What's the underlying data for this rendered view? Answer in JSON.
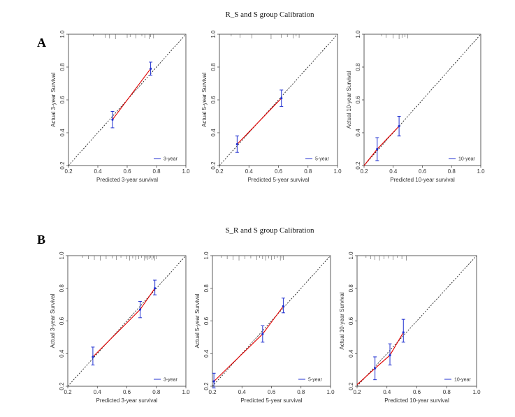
{
  "panels": [
    {
      "label": "A",
      "title": "R_S and S group Calibration"
    },
    {
      "label": "B",
      "title": "S_R and S group Calibration"
    }
  ],
  "colors": {
    "calibration": "#e00000",
    "error_bar": "#2030d0",
    "reference": "#222222",
    "axis": "#333333"
  },
  "chart_data": [
    {
      "type": "line",
      "panel": "A",
      "title": "R_S and S group Calibration",
      "xlabel": "Predicted 3-year  survival",
      "ylabel": "Actual 3-year Survival",
      "legend": "3-year",
      "xlim": [
        0.2,
        1.0
      ],
      "ylim": [
        0.2,
        1.0
      ],
      "xticks": [
        "0.2",
        "0.4",
        "0.6",
        "0.8",
        "1.0"
      ],
      "yticks": [
        "0.2",
        "0.4",
        "0.6",
        "0.8",
        "1.0"
      ],
      "points": [
        {
          "x": 0.5,
          "y": 0.48,
          "lo": 0.43,
          "hi": 0.53
        },
        {
          "x": 0.76,
          "y": 0.79,
          "lo": 0.75,
          "hi": 0.83
        }
      ]
    },
    {
      "type": "line",
      "panel": "A",
      "title": "",
      "xlabel": "Predicted 5-year  survival",
      "ylabel": "Actual 5-year Survival",
      "legend": "5-year",
      "xlim": [
        0.2,
        1.0
      ],
      "ylim": [
        0.2,
        1.0
      ],
      "xticks": [
        "0.2",
        "0.4",
        "0.6",
        "0.8",
        "1.0"
      ],
      "yticks": [
        "0.2",
        "0.4",
        "0.6",
        "0.8",
        "1.0"
      ],
      "points": [
        {
          "x": 0.32,
          "y": 0.33,
          "lo": 0.28,
          "hi": 0.38
        },
        {
          "x": 0.62,
          "y": 0.61,
          "lo": 0.56,
          "hi": 0.66
        }
      ]
    },
    {
      "type": "line",
      "panel": "A",
      "title": "",
      "xlabel": "Predicted 10-year  survival",
      "ylabel": "Actual 10-year Survival",
      "legend": "10-year",
      "xlim": [
        0.2,
        1.0
      ],
      "ylim": [
        0.2,
        1.0
      ],
      "xticks": [
        "0.2",
        "0.4",
        "0.6",
        "0.8",
        "1.0"
      ],
      "yticks": [
        "0.2",
        "0.4",
        "0.6",
        "0.8",
        "1.0"
      ],
      "points": [
        {
          "x": 0.2,
          "y": 0.2
        },
        {
          "x": 0.29,
          "y": 0.3,
          "lo": 0.23,
          "hi": 0.37
        },
        {
          "x": 0.44,
          "y": 0.44,
          "lo": 0.38,
          "hi": 0.5
        }
      ]
    },
    {
      "type": "line",
      "panel": "B",
      "title": "S_R and S group Calibration",
      "xlabel": "Predicted 3-year  survival",
      "ylabel": "Actual 3-year Survival",
      "legend": "3-year",
      "xlim": [
        0.2,
        1.0
      ],
      "ylim": [
        0.2,
        1.0
      ],
      "xticks": [
        "0.2",
        "0.4",
        "0.6",
        "0.8",
        "1.0"
      ],
      "yticks": [
        "0.2",
        "0.4",
        "0.6",
        "0.8",
        "1.0"
      ],
      "points": [
        {
          "x": 0.37,
          "y": 0.38,
          "lo": 0.33,
          "hi": 0.44
        },
        {
          "x": 0.69,
          "y": 0.67,
          "lo": 0.62,
          "hi": 0.72
        },
        {
          "x": 0.79,
          "y": 0.8,
          "lo": 0.76,
          "hi": 0.85
        }
      ]
    },
    {
      "type": "line",
      "panel": "B",
      "title": "",
      "xlabel": "Predicted 5-year  survival",
      "ylabel": "Actual 5-year Survival",
      "legend": "5-year",
      "xlim": [
        0.2,
        1.0
      ],
      "ylim": [
        0.2,
        1.0
      ],
      "xticks": [
        "0.2",
        "0.4",
        "0.6",
        "0.8",
        "1.0"
      ],
      "yticks": [
        "0.2",
        "0.4",
        "0.6",
        "0.8",
        "1.0"
      ],
      "points": [
        {
          "x": 0.21,
          "y": 0.23,
          "lo": 0.19,
          "hi": 0.28
        },
        {
          "x": 0.54,
          "y": 0.52,
          "lo": 0.47,
          "hi": 0.57
        },
        {
          "x": 0.68,
          "y": 0.69,
          "lo": 0.65,
          "hi": 0.74
        }
      ]
    },
    {
      "type": "line",
      "panel": "B",
      "title": "",
      "xlabel": "Predicted 10-year  survival",
      "ylabel": "Actual 10-year Survival",
      "legend": "10-year",
      "xlim": [
        0.2,
        1.0
      ],
      "ylim": [
        0.2,
        1.0
      ],
      "xticks": [
        "0.2",
        "0.4",
        "0.6",
        "0.8",
        "1.0"
      ],
      "yticks": [
        "0.2",
        "0.4",
        "0.6",
        "0.8",
        "1.0"
      ],
      "points": [
        {
          "x": 0.2,
          "y": 0.21
        },
        {
          "x": 0.32,
          "y": 0.31,
          "lo": 0.24,
          "hi": 0.38
        },
        {
          "x": 0.42,
          "y": 0.39,
          "lo": 0.33,
          "hi": 0.46
        },
        {
          "x": 0.51,
          "y": 0.53,
          "lo": 0.47,
          "hi": 0.61
        }
      ]
    }
  ]
}
